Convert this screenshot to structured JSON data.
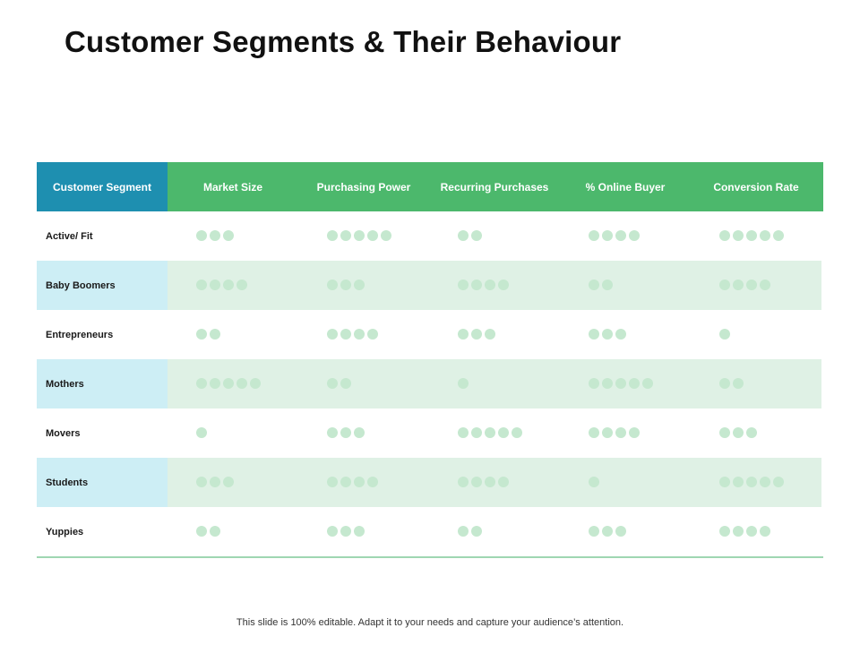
{
  "title": "Customer Segments & Their Behaviour",
  "table": {
    "headers": [
      "Customer Segment",
      "Market Size",
      "Purchasing Power",
      "Recurring Purchases",
      "% Online Buyer",
      "Conversion Rate"
    ],
    "rows": [
      {
        "segment": "Active/ Fit",
        "ratings": [
          3,
          5,
          2,
          4,
          5
        ]
      },
      {
        "segment": "Baby Boomers",
        "ratings": [
          4,
          3,
          4,
          2,
          4
        ]
      },
      {
        "segment": "Entrepreneurs",
        "ratings": [
          2,
          4,
          3,
          3,
          1
        ]
      },
      {
        "segment": "Mothers",
        "ratings": [
          5,
          2,
          1,
          5,
          2
        ]
      },
      {
        "segment": "Movers",
        "ratings": [
          1,
          3,
          5,
          4,
          3
        ]
      },
      {
        "segment": "Students",
        "ratings": [
          3,
          4,
          4,
          1,
          5
        ]
      },
      {
        "segment": "Yuppies",
        "ratings": [
          2,
          3,
          2,
          3,
          4
        ]
      }
    ]
  },
  "footer": "This slide is 100% editable. Adapt it to your needs and capture your audience’s attention.",
  "colors": {
    "header_green": "#4cb86c",
    "header_blue": "#1e8fb0",
    "row_alt_green": "#dff1e5",
    "row_alt_blue": "#cdeef5",
    "dot": "#c5e8cf"
  }
}
